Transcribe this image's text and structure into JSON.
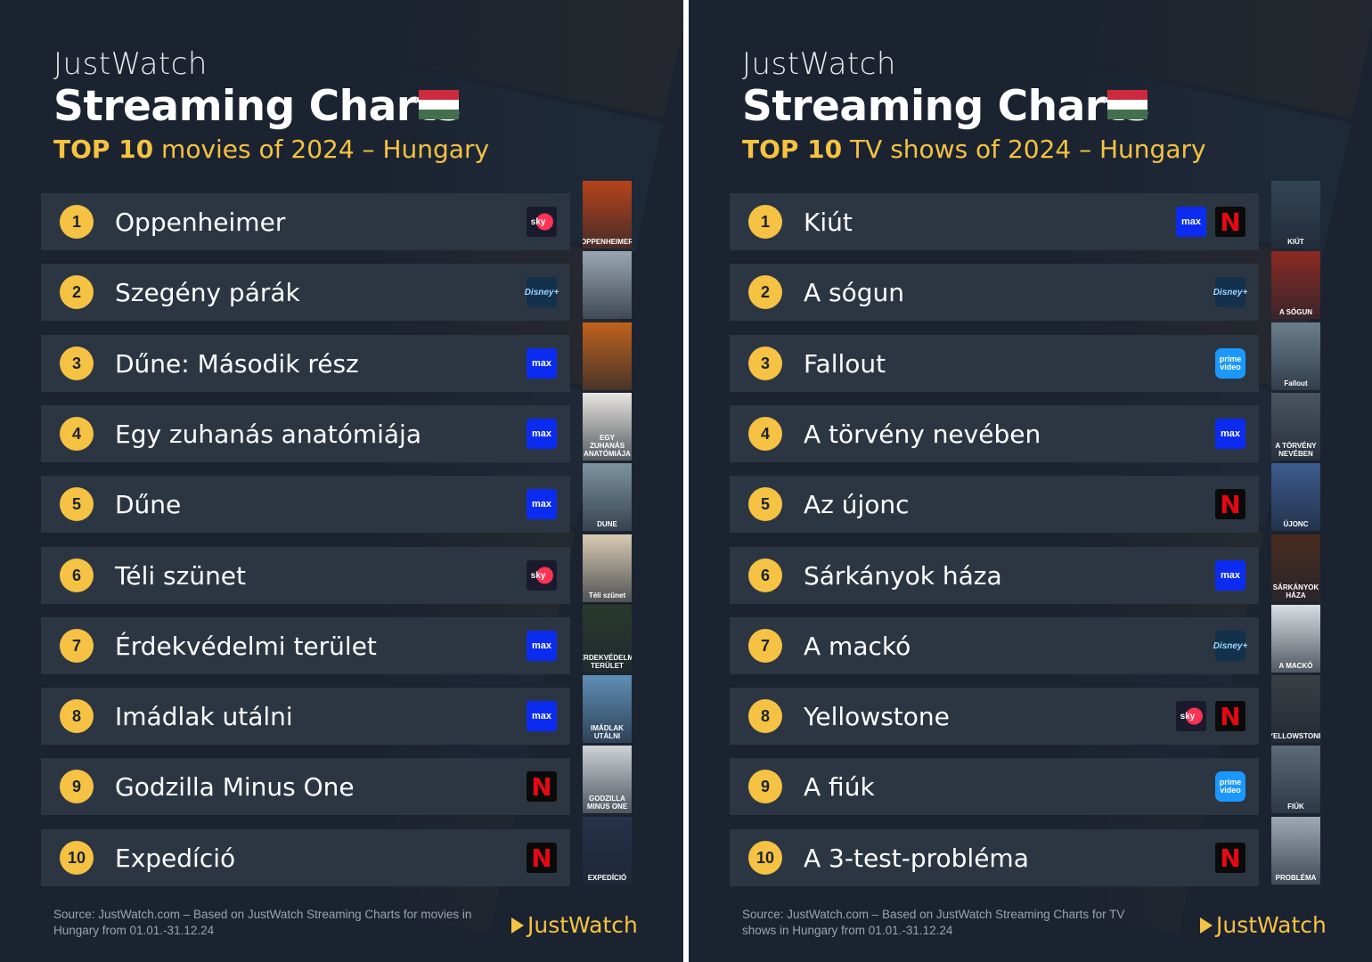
{
  "left": {
    "brand": "JustWatch",
    "title": "Streaming Charts",
    "subtitle_top": "TOP 10",
    "subtitle_rest": " movies of 2024 – Hungary",
    "items": [
      {
        "rank": "1",
        "name": "Oppenheimer",
        "providers": [
          {
            "type": "sky",
            "text": "sky"
          }
        ],
        "poster": {
          "color": "#b7431a",
          "text": "OPPENHEIMER"
        }
      },
      {
        "rank": "2",
        "name": "Szegény párák",
        "providers": [
          {
            "type": "disney",
            "text": "Disney+"
          }
        ],
        "poster": {
          "color": "#9aa7b2",
          "text": ""
        }
      },
      {
        "rank": "3",
        "name": "Dűne: Második rész",
        "providers": [
          {
            "type": "max",
            "text": "max"
          }
        ],
        "poster": {
          "color": "#c0621c",
          "text": ""
        }
      },
      {
        "rank": "4",
        "name": "Egy zuhanás anatómiája",
        "providers": [
          {
            "type": "max",
            "text": "max"
          }
        ],
        "poster": {
          "color": "#e9e6e0",
          "text": "EGY ZUHANÁS ANATÓMIÁJA"
        }
      },
      {
        "rank": "5",
        "name": "Dűne",
        "providers": [
          {
            "type": "max",
            "text": "max"
          }
        ],
        "poster": {
          "color": "#7c93a0",
          "text": "DUNE"
        }
      },
      {
        "rank": "6",
        "name": "Téli szünet",
        "providers": [
          {
            "type": "sky",
            "text": "sky"
          }
        ],
        "poster": {
          "color": "#d8cbb2",
          "text": "Téli szünet"
        }
      },
      {
        "rank": "7",
        "name": "Érdekvédelmi terület",
        "providers": [
          {
            "type": "max",
            "text": "max"
          }
        ],
        "poster": {
          "color": "#2a3a2c",
          "text": "ÉRDEKVÉDELMI TERÜLET"
        }
      },
      {
        "rank": "8",
        "name": "Imádlak utálni",
        "providers": [
          {
            "type": "max",
            "text": "max"
          }
        ],
        "poster": {
          "color": "#5f8fb6",
          "text": "IMÁDLAK UTÁLNI"
        }
      },
      {
        "rank": "9",
        "name": "Godzilla Minus One",
        "providers": [
          {
            "type": "netflix",
            "text": "N"
          }
        ],
        "poster": {
          "color": "#cfd3d6",
          "text": "GODZILLA MINUS ONE"
        }
      },
      {
        "rank": "10",
        "name": "Expedíció",
        "providers": [
          {
            "type": "netflix",
            "text": "N"
          }
        ],
        "poster": {
          "color": "#27324a",
          "text": "EXPEDÍCIÓ"
        }
      }
    ],
    "source": "Source: JustWatch.com – Based on JustWatch Streaming Charts for movies in Hungary from 01.01.-31.12.24",
    "logo": "JustWatch"
  },
  "right": {
    "brand": "JustWatch",
    "title": "Streaming Charts",
    "subtitle_top": "TOP 10",
    "subtitle_rest": " TV shows of 2024 – Hungary",
    "items": [
      {
        "rank": "1",
        "name": "Kiút",
        "providers": [
          {
            "type": "max",
            "text": "max"
          },
          {
            "type": "netflix",
            "text": "N"
          }
        ],
        "poster": {
          "color": "#344556",
          "text": "KIÚT"
        }
      },
      {
        "rank": "2",
        "name": "A sógun",
        "providers": [
          {
            "type": "disney",
            "text": "Disney+"
          }
        ],
        "poster": {
          "color": "#8a2a22",
          "text": "A SÓGUN"
        }
      },
      {
        "rank": "3",
        "name": "Fallout",
        "providers": [
          {
            "type": "prime",
            "text": "prime video"
          }
        ],
        "poster": {
          "color": "#6a7f8d",
          "text": "Fallout"
        }
      },
      {
        "rank": "4",
        "name": "A törvény nevében",
        "providers": [
          {
            "type": "max",
            "text": "max"
          }
        ],
        "poster": {
          "color": "#4a5560",
          "text": "A TÖRVÉNY NEVÉBEN"
        }
      },
      {
        "rank": "5",
        "name": "Az újonc",
        "providers": [
          {
            "type": "netflix",
            "text": "N"
          }
        ],
        "poster": {
          "color": "#3c5b8e",
          "text": "ÚJONC"
        }
      },
      {
        "rank": "6",
        "name": "Sárkányok háza",
        "providers": [
          {
            "type": "max",
            "text": "max"
          }
        ],
        "poster": {
          "color": "#4a2b1f",
          "text": "SÁRKÁNYOK HÁZA"
        }
      },
      {
        "rank": "7",
        "name": "A mackó",
        "providers": [
          {
            "type": "disney",
            "text": "Disney+"
          }
        ],
        "poster": {
          "color": "#d9dde2",
          "text": "A MACKÓ"
        }
      },
      {
        "rank": "8",
        "name": "Yellowstone",
        "providers": [
          {
            "type": "sky",
            "text": "sky"
          },
          {
            "type": "netflix",
            "text": "N"
          }
        ],
        "poster": {
          "color": "#3a3f44",
          "text": "YELLOWSTONE"
        }
      },
      {
        "rank": "9",
        "name": "A fiúk",
        "providers": [
          {
            "type": "prime",
            "text": "prime video"
          }
        ],
        "poster": {
          "color": "#5b6a79",
          "text": "FIÚK"
        }
      },
      {
        "rank": "10",
        "name": "A 3-test-probléma",
        "providers": [
          {
            "type": "netflix",
            "text": "N"
          }
        ],
        "poster": {
          "color": "#9ea9b3",
          "text": "PROBLÉMA"
        }
      }
    ],
    "source": "Source: JustWatch.com – Based on JustWatch Streaming Charts for TV shows in Hungary from 01.01.-31.12.24",
    "logo": "JustWatch"
  },
  "flag_colors": [
    "#cd2a3e",
    "#ffffff",
    "#436f4d"
  ],
  "colors": {
    "accent": "#f5c243",
    "background": "#1b2330",
    "row": "#2c3643"
  }
}
